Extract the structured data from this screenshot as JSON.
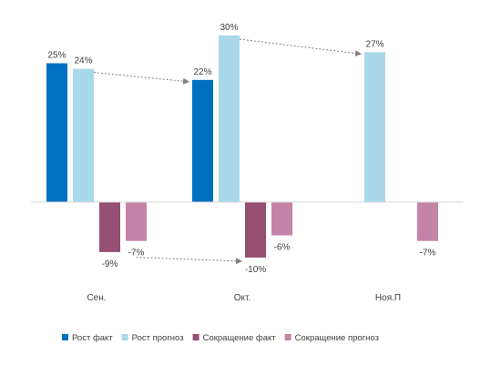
{
  "chart_data": {
    "type": "bar",
    "categories": [
      "Сен.",
      "Окт.",
      "Ноя.П"
    ],
    "series": [
      {
        "name": "Рост факт",
        "color": "#0070C0",
        "values": [
          25,
          22,
          null
        ],
        "labels": [
          "25%",
          "22%",
          ""
        ]
      },
      {
        "name": "Рост прогноз",
        "color": "#A9D8EA",
        "values": [
          24,
          30,
          27
        ],
        "labels": [
          "24%",
          "30%",
          "27%"
        ]
      },
      {
        "name": "Сокращение факт",
        "color": "#954F72",
        "values": [
          -9,
          -10,
          null
        ],
        "labels": [
          "-9%",
          "-10%",
          ""
        ]
      },
      {
        "name": "Сокращение прогноз",
        "color": "#C583A8",
        "values": [
          -7,
          -6,
          -7
        ],
        "labels": [
          "-7%",
          "-6%",
          "-7%"
        ]
      }
    ],
    "ylim": [
      -12,
      32
    ],
    "grid": false,
    "legend": "bottom",
    "annotations": [
      {
        "type": "dotted-arrow",
        "from": {
          "category": "Сен.",
          "series": "Рост прогноз"
        },
        "to": {
          "category": "Окт.",
          "series": "Рост факт"
        }
      },
      {
        "type": "dotted-arrow",
        "from": {
          "category": "Окт.",
          "series": "Рост прогноз"
        },
        "to": {
          "category": "Ноя.П",
          "series": "Рост прогноз"
        }
      },
      {
        "type": "dotted-arrow",
        "from": {
          "category": "Сен.",
          "series": "Сокращение прогноз"
        },
        "to": {
          "category": "Окт.",
          "series": "Сокращение факт"
        }
      }
    ]
  }
}
